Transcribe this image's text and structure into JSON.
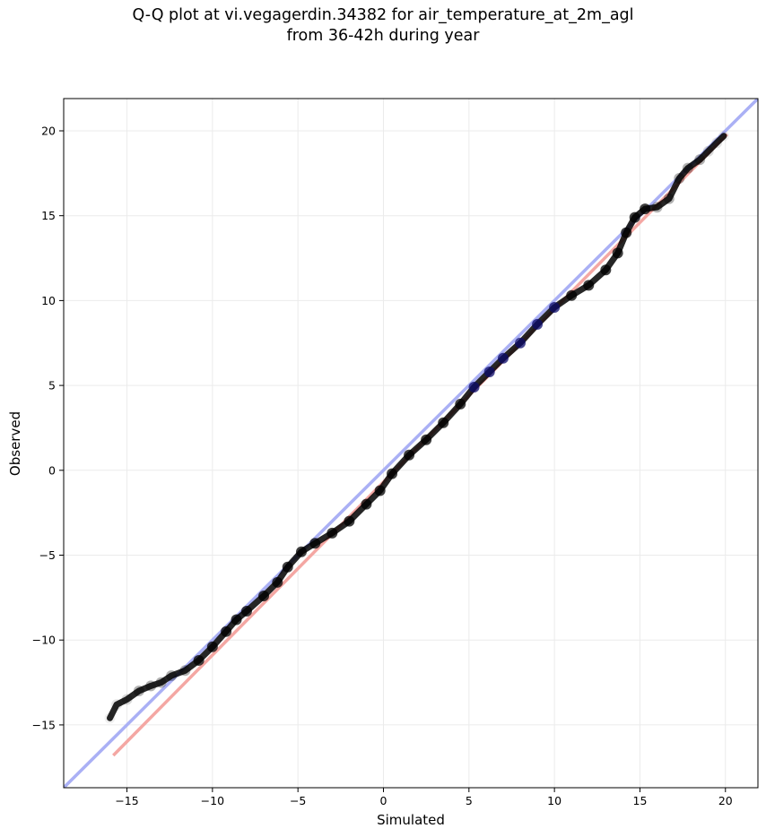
{
  "chart_data": {
    "type": "scatter",
    "title_line1": "Q-Q plot at vi.vegagerdin.34382 for air_temperature_at_2m_agl",
    "title_line2": "from 36-42h during year",
    "xlabel": "Simulated",
    "ylabel": "Observed",
    "xlim": [
      -18.7,
      21.9
    ],
    "ylim": [
      -18.7,
      21.9
    ],
    "xticks": [
      -15,
      -10,
      -5,
      0,
      5,
      10,
      15,
      20
    ],
    "yticks": [
      -15,
      -10,
      -5,
      0,
      5,
      10,
      15,
      20
    ],
    "xtick_labels": [
      "−15",
      "−10",
      "−5",
      "0",
      "5",
      "10",
      "15",
      "20"
    ],
    "ytick_labels": [
      "−15",
      "−10",
      "−5",
      "0",
      "5",
      "10",
      "15",
      "20"
    ],
    "grid": true,
    "reference_line": {
      "from": [
        -18.7,
        -18.7
      ],
      "to": [
        21.9,
        21.9
      ],
      "color": "#aab0f5"
    },
    "fit_line": {
      "from": [
        -15.8,
        -16.8
      ],
      "to": [
        20.1,
        19.8
      ],
      "color": "#f4a7a3"
    },
    "quantile_points": [
      [
        -16.0,
        -14.6
      ],
      [
        -15.6,
        -13.8
      ],
      [
        -15.0,
        -13.5
      ],
      [
        -14.3,
        -13.0
      ],
      [
        -13.6,
        -12.7
      ],
      [
        -13.0,
        -12.5
      ],
      [
        -12.4,
        -12.1
      ],
      [
        -11.6,
        -11.8
      ],
      [
        -10.8,
        -11.2
      ],
      [
        -10.0,
        -10.4
      ],
      [
        -9.2,
        -9.5
      ],
      [
        -8.6,
        -8.8
      ],
      [
        -8.0,
        -8.3
      ],
      [
        -7.0,
        -7.4
      ],
      [
        -6.2,
        -6.6
      ],
      [
        -5.6,
        -5.7
      ],
      [
        -4.8,
        -4.8
      ],
      [
        -4.0,
        -4.3
      ],
      [
        -3.0,
        -3.7
      ],
      [
        -2.0,
        -3.0
      ],
      [
        -1.0,
        -2.0
      ],
      [
        -0.2,
        -1.2
      ],
      [
        0.5,
        -0.2
      ],
      [
        1.5,
        0.9
      ],
      [
        2.5,
        1.8
      ],
      [
        3.5,
        2.8
      ],
      [
        4.5,
        3.9
      ],
      [
        5.3,
        4.9
      ],
      [
        6.2,
        5.8
      ],
      [
        7.0,
        6.6
      ],
      [
        8.0,
        7.5
      ],
      [
        9.0,
        8.6
      ],
      [
        10.0,
        9.6
      ],
      [
        11.0,
        10.3
      ],
      [
        12.0,
        10.9
      ],
      [
        13.0,
        11.8
      ],
      [
        13.7,
        12.8
      ],
      [
        14.2,
        14.0
      ],
      [
        14.7,
        14.9
      ],
      [
        15.3,
        15.4
      ],
      [
        16.0,
        15.5
      ],
      [
        16.7,
        16.0
      ],
      [
        17.3,
        17.2
      ],
      [
        17.8,
        17.8
      ],
      [
        18.5,
        18.3
      ],
      [
        19.0,
        18.8
      ],
      [
        19.5,
        19.3
      ],
      [
        19.9,
        19.7
      ]
    ],
    "point_color": "#000000",
    "highlight_color": "#0b0b6b"
  }
}
